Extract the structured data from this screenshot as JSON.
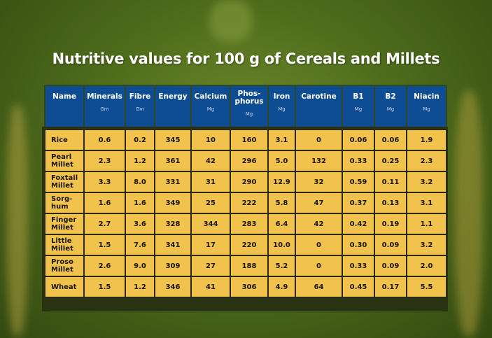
{
  "title": "Nutritive values for 100 g of Cereals and Millets",
  "columns": [
    {
      "label": "Name",
      "unit": ""
    },
    {
      "label": "Minerals",
      "unit": "Gm"
    },
    {
      "label": "Fibre",
      "unit": "Gm"
    },
    {
      "label": "Energy",
      "unit": ""
    },
    {
      "label": "Calcium",
      "unit": "Mg"
    },
    {
      "label": "Phos-phorus",
      "unit": "Mg"
    },
    {
      "label": "Iron",
      "unit": "Mg"
    },
    {
      "label": "Carotine",
      "unit": ""
    },
    {
      "label": "B1",
      "unit": "Mg"
    },
    {
      "label": "B2",
      "unit": "Mg"
    },
    {
      "label": "Niacin",
      "unit": "Mg"
    }
  ],
  "rows": [
    [
      "Rice",
      "0.6",
      "0.2",
      "345",
      "10",
      "160",
      "3.1",
      "0",
      "0.06",
      "0.06",
      "1.9"
    ],
    [
      "Pearl Millet",
      "2.3",
      "1.2",
      "361",
      "42",
      "296",
      "5.0",
      "132",
      "0.33",
      "0.25",
      "2.3"
    ],
    [
      "Foxtail Millet",
      "3.3",
      "8.0",
      "331",
      "31",
      "290",
      "12.9",
      "32",
      "0.59",
      "0.11",
      "3.2"
    ],
    [
      "Sorg-hum",
      "1.6",
      "1.6",
      "349",
      "25",
      "222",
      "5.8",
      "47",
      "0.37",
      "0.13",
      "3.1"
    ],
    [
      "Finger Millet",
      "2.7",
      "3.6",
      "328",
      "344",
      "283",
      "6.4",
      "42",
      "0.42",
      "0.19",
      "1.1"
    ],
    [
      "Little Millet",
      "1.5",
      "7.6",
      "341",
      "17",
      "220",
      "10.0",
      "0",
      "0.30",
      "0.09",
      "3.2"
    ],
    [
      "Proso Millet",
      "2.6",
      "9.0",
      "309",
      "27",
      "188",
      "5.2",
      "0",
      "0.33",
      "0.09",
      "2.0"
    ],
    [
      "Wheat",
      "1.5",
      "1.2",
      "346",
      "41",
      "306",
      "4.9",
      "64",
      "0.45",
      "0.17",
      "5.5"
    ]
  ],
  "colors": {
    "header": "#0e4c93",
    "cell": "#f2c34c",
    "background": "#4f6c1c"
  }
}
